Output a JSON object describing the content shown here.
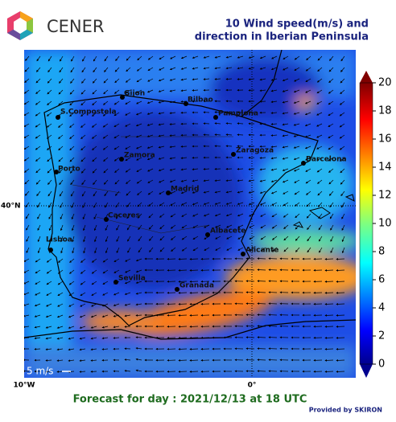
{
  "header": {
    "logo_text": "CENER",
    "title_lines": [
      "10 Wind speed(m/s) and",
      "direction in Iberian Peninsula"
    ]
  },
  "map": {
    "cities": [
      "Gijon",
      "Bilbao",
      "S.Compostela",
      "Pamplona",
      "Zamora",
      "Zaragoza",
      "Barcelona",
      "Porto",
      "Madrid",
      "Caceres",
      "Albacete",
      "Lisboa",
      "Alicante",
      "Sevilla",
      "Granada"
    ],
    "axis_labels": {
      "lon_west": "10°W",
      "lon_zero": "0°",
      "lat": "40°N"
    },
    "scale_label": "5 m/s"
  },
  "colorbar": {
    "ticks": [
      0,
      2,
      4,
      6,
      8,
      10,
      12,
      14,
      16,
      18,
      20
    ]
  },
  "footer": {
    "forecast": "Forecast for day : 2021/12/13 at 18 UTC",
    "provider": "Provided by SKIRON"
  }
}
